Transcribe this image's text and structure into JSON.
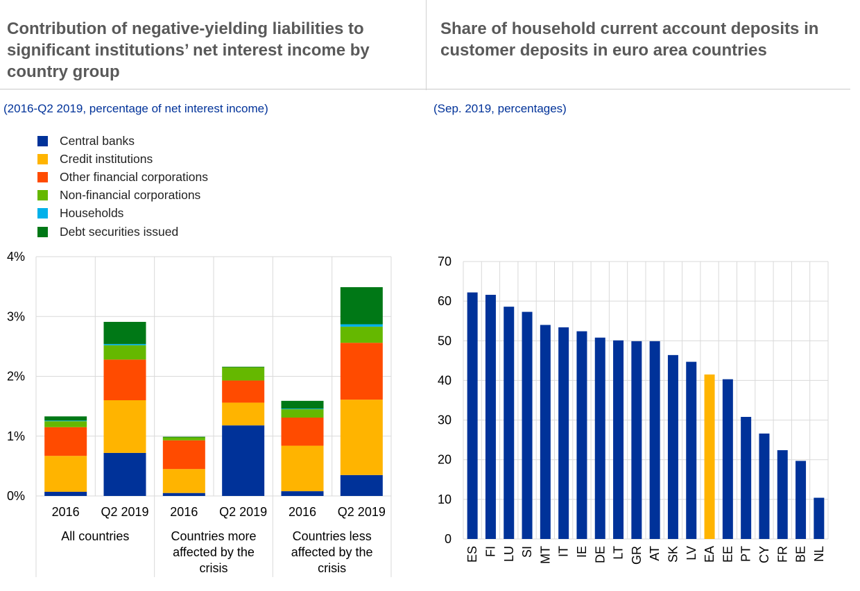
{
  "left": {
    "title": "Contribution of negative-yielding liabilities to significant institutions’ net interest income by country group",
    "subtitle": "(2016-Q2 2019, percentage of net interest income)"
  },
  "right": {
    "title": "Share of household current account deposits in customer deposits in euro area countries",
    "subtitle": "(Sep. 2019, percentages)"
  },
  "chart_data": [
    {
      "type": "bar",
      "stacked": true,
      "title": "Contribution of negative-yielding liabilities to significant institutions’ net interest income by country group",
      "subtitle": "(2016-Q2 2019, percentage of net interest income)",
      "categories": [
        "2016",
        "Q2 2019",
        "2016",
        "Q2 2019",
        "2016",
        "Q2 2019"
      ],
      "groups": [
        {
          "label": "All countries",
          "span": [
            0,
            1
          ]
        },
        {
          "label": "Countries more affected by the crisis",
          "span": [
            2,
            3
          ]
        },
        {
          "label": "Countries less affected by the crisis",
          "span": [
            4,
            5
          ]
        }
      ],
      "yticks": [
        "0%",
        "1%",
        "2%",
        "3%",
        "4%"
      ],
      "ylim": [
        0,
        4
      ],
      "legend_position": "top-left",
      "grid": true,
      "series": [
        {
          "name": "Central banks",
          "color": "#003299",
          "values": [
            0.07,
            0.72,
            0.05,
            1.18,
            0.08,
            0.35
          ]
        },
        {
          "name": "Credit institutions",
          "color": "#FFB400",
          "values": [
            0.6,
            0.88,
            0.4,
            0.38,
            0.76,
            1.26
          ]
        },
        {
          "name": "Other financial corporations",
          "color": "#FF4B00",
          "values": [
            0.48,
            0.68,
            0.48,
            0.37,
            0.47,
            0.95
          ]
        },
        {
          "name": "Non-financial corporations",
          "color": "#65B800",
          "values": [
            0.1,
            0.24,
            0.05,
            0.22,
            0.14,
            0.27
          ]
        },
        {
          "name": "Households",
          "color": "#00B1EA",
          "values": [
            0.01,
            0.02,
            0.0,
            0.0,
            0.01,
            0.04
          ]
        },
        {
          "name": "Debt securities issued",
          "color": "#007816",
          "values": [
            0.07,
            0.37,
            0.01,
            0.01,
            0.13,
            0.62
          ]
        }
      ]
    },
    {
      "type": "bar",
      "title": "Share of household current account deposits in customer deposits in euro area countries",
      "subtitle": "(Sep. 2019, percentages)",
      "categories": [
        "ES",
        "FI",
        "LU",
        "SI",
        "MT",
        "IT",
        "IE",
        "DE",
        "LT",
        "GR",
        "AT",
        "SK",
        "LV",
        "EA",
        "EE",
        "PT",
        "CY",
        "FR",
        "BE",
        "NL"
      ],
      "values": [
        62.2,
        61.6,
        58.6,
        57.3,
        54.0,
        53.4,
        52.4,
        50.8,
        50.1,
        49.9,
        49.9,
        46.4,
        44.7,
        41.5,
        40.3,
        30.8,
        26.6,
        22.4,
        19.7,
        10.4
      ],
      "highlight": "EA",
      "bar_color": "#003299",
      "highlight_color": "#FFB400",
      "yticks": [
        "0",
        "10",
        "20",
        "30",
        "40",
        "50",
        "60",
        "70"
      ],
      "ylim": [
        0,
        70
      ],
      "grid": true
    }
  ]
}
